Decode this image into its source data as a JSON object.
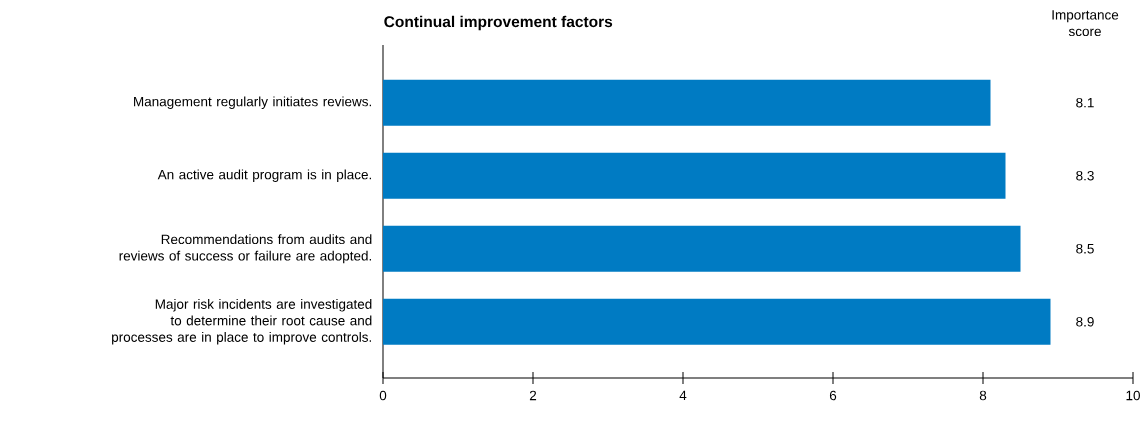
{
  "chart_data": {
    "type": "bar",
    "orientation": "horizontal",
    "title": "Continual improvement factors",
    "categories": [
      "Management regularly initiates reviews.",
      "An active audit program is in place.",
      "Recommendations from audits and reviews of success or failure are adopted.",
      "Major risk incidents are investigated to determine their root cause and processes are in place to improve controls."
    ],
    "values": [
      8.1,
      8.3,
      8.5,
      8.9
    ],
    "color": "#007bc3",
    "xlim": [
      0,
      10
    ],
    "xticks": [
      0,
      2,
      4,
      6,
      8,
      10
    ],
    "data_labels": true,
    "annotations": [
      "Importance score"
    ]
  }
}
